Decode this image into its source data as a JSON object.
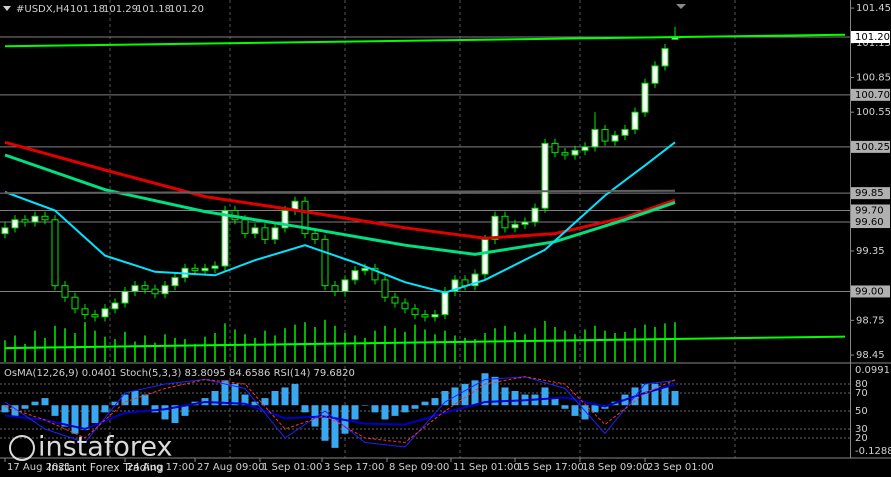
{
  "chart_data": {
    "type": "candlestick",
    "header": "#USDX,H4",
    "header_ohlc": [
      "101.18",
      "101.29",
      "101.18",
      "101.20"
    ],
    "indicator_header": "OsMA(12,26,9) 0.0401  Stoch(5,3,3) 83.8095 84.6586  RSI(14) 79.6820",
    "watermark": {
      "brand": "instaforex",
      "slogan": "Instant Forex Trading"
    },
    "xlim": [
      -0.5,
      84.5
    ],
    "ylim": [
      98.39,
      101.52
    ],
    "yticks": [
      101.45,
      101.15,
      100.85,
      100.55,
      99.35,
      98.75,
      98.45
    ],
    "xticks": [
      {
        "value": 0,
        "label": "17 Aug 2021"
      },
      {
        "value": 12,
        "label": "24 Aug 17:00"
      },
      {
        "value": 19,
        "label": "27 Aug 09:00"
      },
      {
        "value": 25.5,
        "label": "1 Sep 01:00"
      },
      {
        "value": 31.7,
        "label": "3 Sep 17:00"
      },
      {
        "value": 38.2,
        "label": "8 Sep 09:00"
      },
      {
        "value": 44.6,
        "label": "11 Sep 01:00"
      },
      {
        "value": 51,
        "label": "15 Sep 17:00"
      },
      {
        "value": 57.5,
        "label": "18 Sep 09:00"
      },
      {
        "value": 64,
        "label": "23 Sep 01:00"
      }
    ],
    "candle_color": "#00e600",
    "up_fill": "#ffffff",
    "down_fill": "#000000",
    "candles": [
      [
        99.5,
        99.6,
        99.46,
        99.55
      ],
      [
        99.55,
        99.66,
        99.51,
        99.62
      ],
      [
        99.62,
        99.66,
        99.56,
        99.6
      ],
      [
        99.6,
        99.69,
        99.56,
        99.65
      ],
      [
        99.65,
        99.69,
        99.58,
        99.62
      ],
      [
        99.62,
        99.66,
        99.01,
        99.05
      ],
      [
        99.05,
        99.09,
        98.91,
        98.95
      ],
      [
        98.95,
        98.99,
        98.81,
        98.85
      ],
      [
        98.85,
        98.89,
        98.76,
        98.8
      ],
      [
        98.8,
        98.84,
        98.74,
        98.78
      ],
      [
        98.78,
        98.89,
        98.74,
        98.85
      ],
      [
        98.85,
        98.94,
        98.81,
        98.9
      ],
      [
        98.9,
        99.04,
        98.86,
        99.0
      ],
      [
        99.0,
        99.09,
        98.96,
        99.05
      ],
      [
        99.05,
        99.09,
        98.98,
        99.02
      ],
      [
        99.02,
        99.06,
        98.94,
        98.98
      ],
      [
        98.98,
        99.09,
        98.94,
        99.05
      ],
      [
        99.05,
        99.16,
        99.01,
        99.12
      ],
      [
        99.12,
        99.24,
        99.08,
        99.2
      ],
      [
        99.2,
        99.24,
        99.14,
        99.18
      ],
      [
        99.18,
        99.24,
        99.14,
        99.2
      ],
      [
        99.2,
        99.26,
        99.16,
        99.22
      ],
      [
        99.22,
        99.74,
        99.18,
        99.7
      ],
      [
        99.7,
        99.74,
        99.58,
        99.62
      ],
      [
        99.62,
        99.66,
        99.46,
        99.5
      ],
      [
        99.5,
        99.59,
        99.46,
        99.55
      ],
      [
        99.55,
        99.59,
        99.41,
        99.45
      ],
      [
        99.45,
        99.59,
        99.41,
        99.55
      ],
      [
        99.55,
        99.74,
        99.51,
        99.7
      ],
      [
        99.7,
        99.82,
        99.66,
        99.78
      ],
      [
        99.78,
        99.82,
        99.46,
        99.5
      ],
      [
        99.5,
        99.54,
        99.41,
        99.45
      ],
      [
        99.45,
        99.49,
        99.01,
        99.05
      ],
      [
        99.05,
        99.09,
        98.96,
        99.0
      ],
      [
        99.0,
        99.14,
        98.96,
        99.1
      ],
      [
        99.1,
        99.22,
        99.06,
        99.18
      ],
      [
        99.18,
        99.24,
        99.14,
        99.2
      ],
      [
        99.2,
        99.24,
        99.06,
        99.1
      ],
      [
        99.1,
        99.14,
        98.91,
        98.95
      ],
      [
        98.95,
        98.99,
        98.86,
        98.9
      ],
      [
        98.9,
        98.94,
        98.81,
        98.85
      ],
      [
        98.85,
        98.89,
        98.76,
        98.8
      ],
      [
        98.8,
        98.84,
        98.74,
        98.78
      ],
      [
        98.78,
        98.84,
        98.74,
        98.8
      ],
      [
        98.8,
        99.04,
        98.76,
        99.0
      ],
      [
        99.0,
        99.14,
        98.96,
        99.1
      ],
      [
        99.1,
        99.14,
        99.01,
        99.05
      ],
      [
        99.05,
        99.19,
        99.01,
        99.15
      ],
      [
        99.15,
        99.49,
        99.11,
        99.45
      ],
      [
        99.45,
        99.69,
        99.41,
        99.65
      ],
      [
        99.65,
        99.69,
        99.51,
        99.55
      ],
      [
        99.55,
        99.62,
        99.51,
        99.58
      ],
      [
        99.58,
        99.64,
        99.54,
        99.6
      ],
      [
        99.6,
        99.76,
        99.56,
        99.72
      ],
      [
        99.72,
        100.32,
        99.68,
        100.28
      ],
      [
        100.28,
        100.32,
        100.16,
        100.2
      ],
      [
        100.2,
        100.24,
        100.14,
        100.18
      ],
      [
        100.18,
        100.26,
        100.14,
        100.22
      ],
      [
        100.22,
        100.29,
        100.18,
        100.25
      ],
      [
        100.25,
        100.55,
        100.21,
        100.4
      ],
      [
        100.4,
        100.44,
        100.26,
        100.3
      ],
      [
        100.3,
        100.39,
        100.26,
        100.35
      ],
      [
        100.35,
        100.44,
        100.31,
        100.4
      ],
      [
        100.4,
        100.59,
        100.36,
        100.55
      ],
      [
        100.55,
        100.84,
        100.51,
        100.8
      ],
      [
        100.8,
        100.99,
        100.76,
        100.95
      ],
      [
        100.95,
        101.14,
        100.91,
        101.1
      ],
      [
        101.18,
        101.29,
        101.18,
        101.2
      ]
    ],
    "volume_color": "#00b400",
    "volume_lim": [
      0,
      30000
    ],
    "volumes": [
      1800,
      2200,
      1500,
      2600,
      2000,
      3000,
      2800,
      2400,
      3300,
      2600,
      2100,
      1900,
      2500,
      1700,
      2200,
      1600,
      2300,
      2000,
      1900,
      1500,
      2100,
      2400,
      3200,
      2700,
      2300,
      2000,
      2600,
      2200,
      2800,
      3100,
      3300,
      2900,
      3500,
      3000,
      2400,
      2200,
      2000,
      2600,
      3000,
      2800,
      2500,
      3100,
      2700,
      2300,
      2600,
      2200,
      2000,
      1900,
      2400,
      2800,
      3000,
      2500,
      2300,
      2800,
      3400,
      2900,
      2600,
      2300,
      2700,
      3000,
      2600,
      2400,
      2500,
      2800,
      3100,
      2900,
      3200,
      3300
    ],
    "series": [
      {
        "color": "#e00000",
        "width": 3,
        "x": [
          0,
          10,
          20,
          30,
          40,
          48,
          55,
          62,
          67
        ],
        "values": [
          100.29,
          100.05,
          99.82,
          99.69,
          99.55,
          99.46,
          99.5,
          99.64,
          99.79
        ]
      },
      {
        "color": "#00e080",
        "width": 3,
        "x": [
          0,
          10,
          20,
          30,
          40,
          47,
          55,
          62,
          67
        ],
        "values": [
          100.18,
          99.88,
          99.69,
          99.55,
          99.4,
          99.32,
          99.43,
          99.62,
          99.77
        ]
      },
      {
        "color": "#00e5ff",
        "width": 2,
        "x": [
          0,
          5,
          10,
          15,
          21,
          25,
          30,
          35,
          40,
          44,
          48,
          54,
          60,
          64,
          67
        ],
        "values": [
          99.86,
          99.7,
          99.31,
          99.17,
          99.14,
          99.27,
          99.4,
          99.25,
          99.08,
          98.99,
          99.1,
          99.36,
          99.83,
          100.09,
          100.29
        ]
      },
      {
        "color": "#00ff00",
        "width": 2,
        "x": [
          0,
          84
        ],
        "values": [
          101.12,
          101.22
        ]
      },
      {
        "color": "#00ff00",
        "width": 2,
        "x": [
          0,
          84
        ],
        "values": [
          98.51,
          98.61
        ]
      },
      {
        "color": "#606060",
        "width": 2,
        "x": [
          0,
          67
        ],
        "values": [
          99.85,
          99.87
        ]
      }
    ],
    "levels": [
      {
        "value": 100.7,
        "label": "100.70"
      },
      {
        "value": 100.25,
        "label": "100.25"
      },
      {
        "value": 99.85,
        "label": "99.85"
      },
      {
        "value": 99.7,
        "label": "99.70"
      },
      {
        "value": 99.6,
        "label": "99.60"
      },
      {
        "value": 99,
        "label": "99.00"
      }
    ],
    "level_color": "#808080",
    "bid": {
      "value": 101.2,
      "label": "101.20"
    },
    "osma_color": "#3aa8f0",
    "osma_lim": [
      -0.1429,
      0.1104
    ],
    "osma_ticks": [
      0.0991,
      -0.1288
    ],
    "osma": [
      -0.02,
      -0.03,
      -0.01,
      0.01,
      0.02,
      -0.03,
      -0.06,
      -0.08,
      -0.07,
      -0.05,
      -0.02,
      0.01,
      0.03,
      0.04,
      0.03,
      -0.02,
      -0.04,
      -0.05,
      -0.03,
      0.01,
      0.02,
      0.04,
      0.07,
      0.06,
      0.03,
      0.01,
      0.02,
      0.04,
      0.05,
      0.06,
      -0.02,
      -0.06,
      -0.1,
      -0.12,
      -0.08,
      -0.04,
      0,
      -0.02,
      -0.04,
      -0.03,
      -0.02,
      -0.01,
      0.01,
      0.02,
      0.04,
      0.05,
      0.06,
      0.07,
      0.09,
      0.08,
      0.05,
      0.04,
      0.03,
      0.03,
      0.05,
      0.02,
      -0.01,
      -0.03,
      -0.04,
      -0.02,
      -0.01,
      0.01,
      0.03,
      0.05,
      0.06,
      0.06,
      0.05,
      0.0401
    ],
    "osc_lim": [
      0,
      100
    ],
    "osc_ticks": [
      80,
      70,
      50,
      30,
      20
    ],
    "oscillators": [
      {
        "color": "#0000c8",
        "width": 2,
        "x": [
          0,
          4,
          8,
          12,
          16,
          20,
          24,
          28,
          32,
          36,
          40,
          44,
          48,
          52,
          56,
          60,
          64,
          67
        ],
        "values": [
          45,
          40,
          30,
          48,
          52,
          60,
          58,
          42,
          44,
          36,
          35,
          48,
          60,
          62,
          65,
          55,
          70,
          79.682
        ]
      },
      {
        "color": "#2020ff",
        "width": 1,
        "x": [
          0,
          4,
          8,
          12,
          16,
          20,
          24,
          28,
          32,
          36,
          40,
          44,
          48,
          52,
          56,
          60,
          64,
          67
        ],
        "values": [
          60,
          30,
          15,
          70,
          80,
          85,
          75,
          20,
          50,
          15,
          10,
          60,
          85,
          88,
          75,
          25,
          80,
          83.8095
        ]
      },
      {
        "color": "#ff3030",
        "width": 1,
        "dash": true,
        "x": [
          0,
          4,
          8,
          12,
          16,
          20,
          24,
          28,
          32,
          36,
          40,
          44,
          48,
          52,
          56,
          60,
          64,
          67
        ],
        "values": [
          55,
          40,
          20,
          60,
          75,
          85,
          80,
          30,
          45,
          20,
          15,
          50,
          80,
          88,
          80,
          35,
          70,
          84.6586
        ]
      }
    ]
  }
}
